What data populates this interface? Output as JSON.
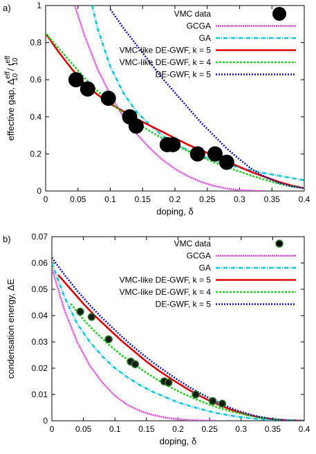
{
  "chart_data": [
    {
      "type": "line",
      "panel_label": "a)",
      "xlabel": "doping, δ",
      "ylabel": "effective gap, Δ",
      "ylabel_sup": "eff",
      "ylabel_sub": "10",
      "ylabel_mid": " / t",
      "ylabel_sup2": "eff",
      "ylabel_sub2": "10",
      "xlim": [
        0,
        0.4
      ],
      "ylim": [
        0,
        1
      ],
      "xticks": [
        "0",
        "0.05",
        "0.1",
        "0.15",
        "0.2",
        "0.25",
        "0.3",
        "0.35",
        "0.4"
      ],
      "yticks": [
        "0",
        "0.2",
        "0.4",
        "0.6",
        "0.8",
        "1"
      ],
      "legend_position": "top-right",
      "series": [
        {
          "name": "VMC data",
          "kind": "points",
          "color": "#000000",
          "x": [
            0.047,
            0.065,
            0.097,
            0.13,
            0.14,
            0.188,
            0.197,
            0.235,
            0.262,
            0.28
          ],
          "y": [
            0.6,
            0.55,
            0.5,
            0.4,
            0.35,
            0.25,
            0.25,
            0.2,
            0.2,
            0.155
          ]
        },
        {
          "name": "GCGA",
          "kind": "line",
          "color": "#e040e0",
          "x": [
            0.045,
            0.06,
            0.08,
            0.1,
            0.12,
            0.14,
            0.16,
            0.18,
            0.2,
            0.22,
            0.24,
            0.26,
            0.28,
            0.3,
            0.32,
            0.34
          ],
          "y": [
            1.0,
            0.84,
            0.66,
            0.52,
            0.4,
            0.31,
            0.235,
            0.17,
            0.12,
            0.08,
            0.05,
            0.028,
            0.013,
            0.005,
            0.001,
            0
          ]
        },
        {
          "name": "GA",
          "kind": "line",
          "color": "#00c8e0",
          "x": [
            0.072,
            0.08,
            0.1,
            0.12,
            0.14,
            0.16,
            0.18,
            0.2,
            0.22,
            0.24,
            0.26,
            0.28,
            0.3,
            0.32,
            0.34,
            0.36,
            0.38,
            0.4
          ],
          "y": [
            1.0,
            0.88,
            0.67,
            0.53,
            0.43,
            0.36,
            0.3,
            0.255,
            0.22,
            0.19,
            0.165,
            0.145,
            0.125,
            0.11,
            0.095,
            0.083,
            0.07,
            0.058
          ]
        },
        {
          "name": "VMC-like DE-GWF, k = 5",
          "kind": "line",
          "color": "#e00000",
          "x": [
            0,
            0.02,
            0.04,
            0.06,
            0.08,
            0.1,
            0.12,
            0.14,
            0.16,
            0.18,
            0.2,
            0.22,
            0.24,
            0.26,
            0.28,
            0.3,
            0.32,
            0.34,
            0.36,
            0.38,
            0.4
          ],
          "y": [
            0.85,
            0.75,
            0.66,
            0.58,
            0.52,
            0.47,
            0.43,
            0.39,
            0.355,
            0.32,
            0.285,
            0.25,
            0.22,
            0.19,
            0.16,
            0.13,
            0.1,
            0.075,
            0.05,
            0.03,
            0.015
          ]
        },
        {
          "name": "VMC-like DE-GWF, k = 4",
          "kind": "line",
          "color": "#20d020",
          "x": [
            0,
            0.02,
            0.04,
            0.06,
            0.08,
            0.1,
            0.12,
            0.14,
            0.16,
            0.18,
            0.2,
            0.22,
            0.24,
            0.26,
            0.28,
            0.3,
            0.32,
            0.34,
            0.36,
            0.38,
            0.4
          ],
          "y": [
            0.85,
            0.77,
            0.69,
            0.61,
            0.54,
            0.48,
            0.42,
            0.37,
            0.325,
            0.285,
            0.25,
            0.215,
            0.185,
            0.155,
            0.13,
            0.105,
            0.08,
            0.06,
            0.04,
            0.025,
            0.015
          ]
        },
        {
          "name": "DE-GWF, k = 5",
          "kind": "line",
          "color": "#1010b0",
          "x": [
            0.1,
            0.12,
            0.14,
            0.16,
            0.18,
            0.2,
            0.22,
            0.24,
            0.26,
            0.28,
            0.3,
            0.32,
            0.34,
            0.36,
            0.38,
            0.4
          ],
          "y": [
            0.98,
            0.88,
            0.79,
            0.7,
            0.61,
            0.53,
            0.45,
            0.37,
            0.3,
            0.23,
            0.17,
            0.115,
            0.075,
            0.045,
            0.025,
            0.015
          ]
        }
      ]
    },
    {
      "type": "line",
      "panel_label": "b)",
      "xlabel": "doping, δ",
      "ylabel": "condensation energy, ΔE",
      "xlim": [
        0,
        0.4
      ],
      "ylim": [
        0,
        0.07
      ],
      "xticks": [
        "0",
        "0.05",
        "0.1",
        "0.15",
        "0.2",
        "0.25",
        "0.3",
        "0.35",
        "0.4"
      ],
      "yticks": [
        "0",
        "0.01",
        "0.02",
        "0.03",
        "0.04",
        "0.05",
        "0.06",
        "0.07"
      ],
      "legend_position": "top-right",
      "series": [
        {
          "name": "VMC data",
          "kind": "points",
          "color": "#000000",
          "x": [
            0.045,
            0.063,
            0.09,
            0.125,
            0.132,
            0.178,
            0.185,
            0.228,
            0.255,
            0.27
          ],
          "y": [
            0.0415,
            0.0395,
            0.031,
            0.0225,
            0.0215,
            0.015,
            0.0145,
            0.01,
            0.0075,
            0.0065
          ]
        },
        {
          "name": "GCGA",
          "kind": "line",
          "color": "#e040e0",
          "x": [
            0,
            0.02,
            0.04,
            0.06,
            0.08,
            0.1,
            0.12,
            0.14,
            0.16,
            0.18,
            0.2,
            0.22,
            0.24,
            0.26
          ],
          "y": [
            0.058,
            0.042,
            0.03,
            0.021,
            0.0145,
            0.0095,
            0.006,
            0.0037,
            0.0022,
            0.0012,
            0.0006,
            0.0002,
            5e-05,
            0
          ]
        },
        {
          "name": "GA",
          "kind": "line",
          "color": "#00c8e0",
          "x": [
            0,
            0.02,
            0.04,
            0.06,
            0.08,
            0.1,
            0.12,
            0.14,
            0.16,
            0.18,
            0.2,
            0.22,
            0.24,
            0.26,
            0.28,
            0.3,
            0.32,
            0.34,
            0.36,
            0.38,
            0.4
          ],
          "y": [
            0.06,
            0.047,
            0.037,
            0.03,
            0.0245,
            0.02,
            0.0165,
            0.0135,
            0.011,
            0.009,
            0.007,
            0.0055,
            0.0042,
            0.003,
            0.0021,
            0.0014,
            0.0008,
            0.0004,
            0.0002,
            0.0001,
            0
          ]
        },
        {
          "name": "VMC-like DE-GWF, k = 5",
          "kind": "line",
          "color": "#e00000",
          "x": [
            0.01,
            0.03,
            0.05,
            0.07,
            0.09,
            0.11,
            0.13,
            0.15,
            0.17,
            0.19,
            0.21,
            0.23,
            0.25,
            0.27,
            0.29,
            0.31,
            0.33,
            0.35,
            0.37,
            0.39,
            0.4
          ],
          "y": [
            0.0555,
            0.05,
            0.0445,
            0.0395,
            0.035,
            0.0305,
            0.0265,
            0.0225,
            0.019,
            0.0158,
            0.0128,
            0.01,
            0.0076,
            0.0055,
            0.0037,
            0.0023,
            0.0013,
            0.0006,
            0.0002,
            5e-05,
            0
          ]
        },
        {
          "name": "VMC-like DE-GWF, k = 4",
          "kind": "line",
          "color": "#20d020",
          "x": [
            0.03,
            0.05,
            0.07,
            0.09,
            0.11,
            0.13,
            0.15,
            0.17,
            0.19,
            0.21,
            0.23,
            0.25,
            0.27,
            0.29,
            0.31,
            0.33,
            0.35,
            0.37,
            0.39,
            0.4
          ],
          "y": [
            0.0445,
            0.0385,
            0.0335,
            0.029,
            0.025,
            0.0215,
            0.0182,
            0.0152,
            0.0125,
            0.0101,
            0.008,
            0.0061,
            0.0045,
            0.0032,
            0.0021,
            0.0012,
            0.0006,
            0.0002,
            5e-05,
            0
          ]
        },
        {
          "name": "DE-GWF, k = 5",
          "kind": "line",
          "color": "#1010b0",
          "x": [
            0,
            0.02,
            0.04,
            0.06,
            0.08,
            0.1,
            0.12,
            0.14,
            0.16,
            0.18,
            0.2,
            0.22,
            0.24,
            0.26,
            0.28,
            0.3,
            0.32,
            0.34,
            0.36,
            0.38,
            0.4
          ],
          "y": [
            0.062,
            0.0555,
            0.0495,
            0.044,
            0.039,
            0.0345,
            0.03,
            0.026,
            0.0222,
            0.0188,
            0.0155,
            0.0125,
            0.0098,
            0.0074,
            0.0052,
            0.0034,
            0.002,
            0.001,
            0.0004,
            0.0001,
            0
          ]
        }
      ]
    }
  ]
}
